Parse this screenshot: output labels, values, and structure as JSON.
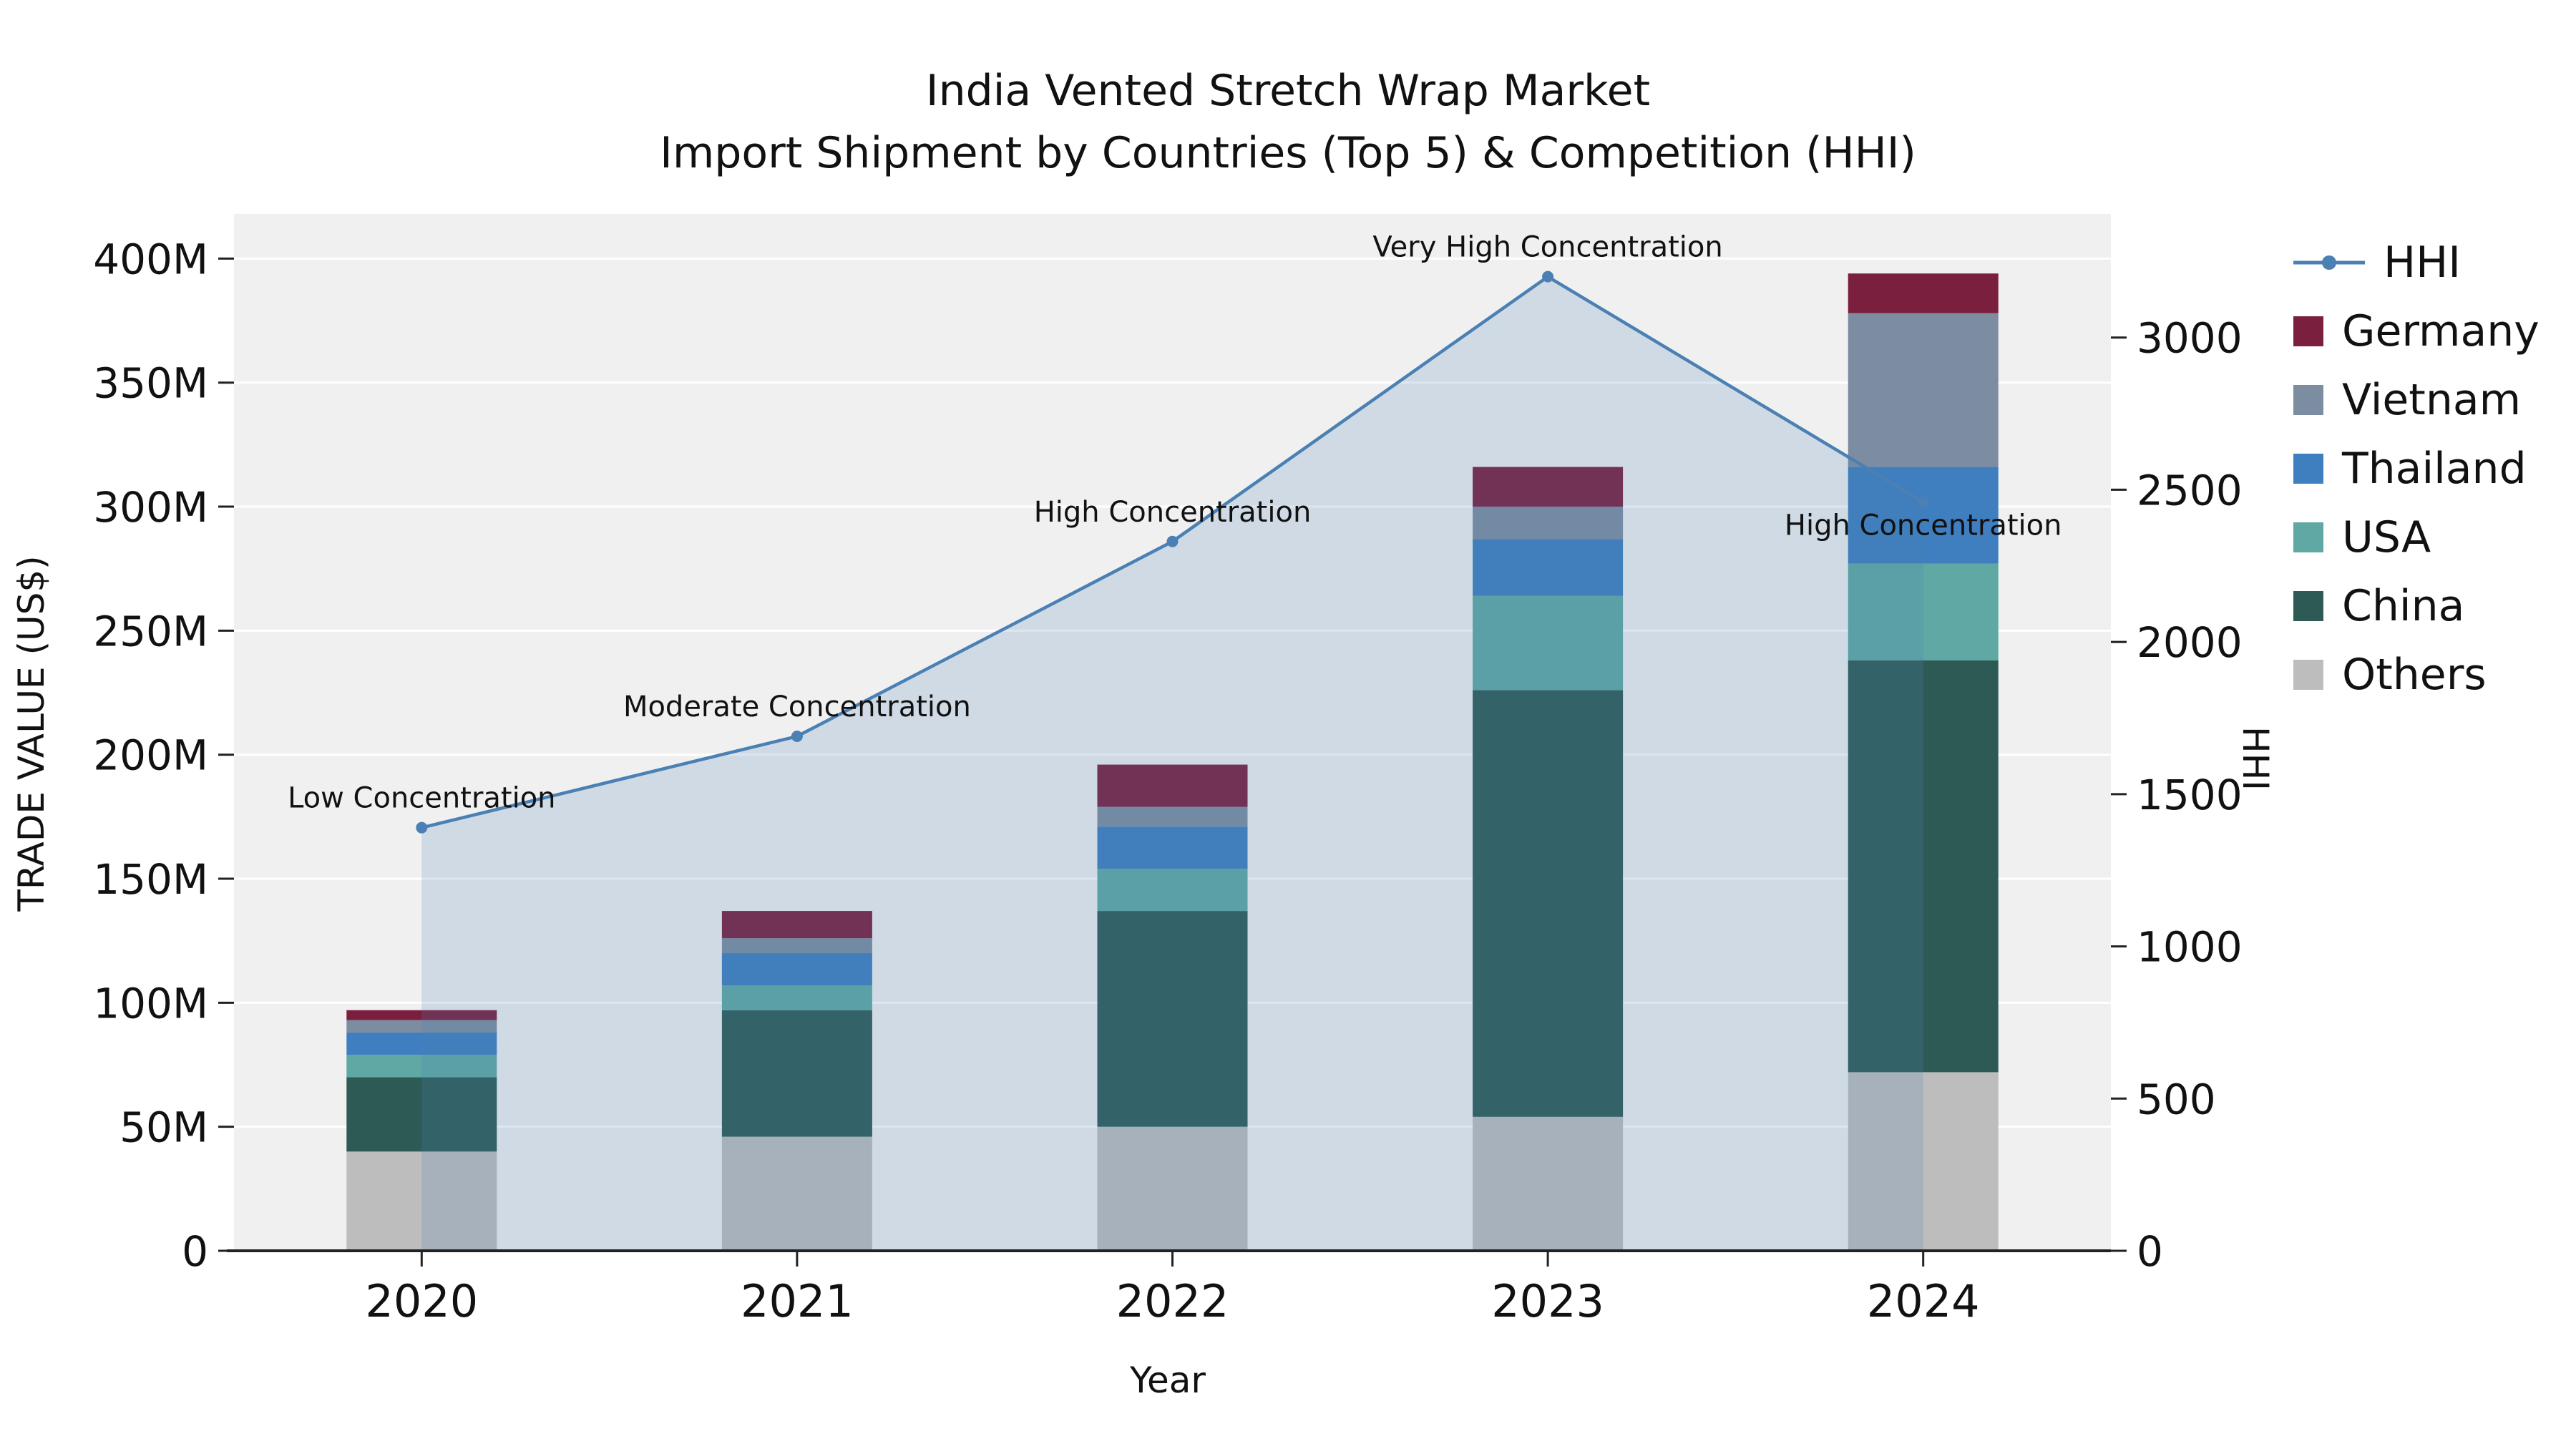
{
  "title": {
    "line1": "India Vented Stretch Wrap Market",
    "line2": "Import Shipment by Countries (Top 5) & Competition (HHI)"
  },
  "axes": {
    "left_label": "TRADE VALUE (US$)",
    "right_label": "HHI",
    "x_label": "Year"
  },
  "chart_data": {
    "type": "bar+line",
    "title": "India Vented Stretch Wrap Market — Import Shipment by Countries (Top 5) & Competition (HHI)",
    "categories": [
      "2020",
      "2021",
      "2022",
      "2023",
      "2024"
    ],
    "bar_value_unit": "Million US$",
    "series": [
      {
        "name": "Others",
        "color": "#bdbdbd",
        "values": [
          40,
          46,
          50,
          54,
          72
        ]
      },
      {
        "name": "China",
        "color": "#2e5a55",
        "values": [
          30,
          51,
          87,
          172,
          166
        ]
      },
      {
        "name": "USA",
        "color": "#5fa8a3",
        "values": [
          9,
          10,
          17,
          38,
          39
        ]
      },
      {
        "name": "Thailand",
        "color": "#3f7fbf",
        "values": [
          9,
          13,
          17,
          23,
          39
        ]
      },
      {
        "name": "Vietnam",
        "color": "#7d8da1",
        "values": [
          5,
          6,
          8,
          13,
          62
        ]
      },
      {
        "name": "Germany",
        "color": "#7b1f3e",
        "values": [
          4,
          11,
          17,
          16,
          16
        ]
      }
    ],
    "line": {
      "name": "HHI",
      "color": "#4a80b3",
      "fill_alpha": 0.2,
      "values": [
        1390,
        1690,
        2330,
        3200,
        2460
      ],
      "annotations": [
        "Low Concentration",
        "Moderate Concentration",
        "High Concentration",
        "Very High Concentration",
        "High Concentration"
      ]
    },
    "left_axis": {
      "label": "TRADE VALUE (US$)",
      "ticks": [
        "0",
        "50M",
        "100M",
        "150M",
        "200M",
        "250M",
        "300M",
        "350M",
        "400M"
      ],
      "tick_values": [
        0,
        50,
        100,
        150,
        200,
        250,
        300,
        350,
        400
      ],
      "max": 418
    },
    "right_axis": {
      "label": "HHI",
      "ticks": [
        "0",
        "500",
        "1000",
        "1500",
        "2000",
        "2500",
        "3000"
      ],
      "tick_values": [
        0,
        500,
        1000,
        1500,
        2000,
        2500,
        3000
      ],
      "max": 3406
    },
    "x_axis": {
      "label": "Year"
    },
    "grid": true,
    "plot_bg": "#f0f0f0",
    "legend_position": "right",
    "legend": [
      {
        "label": "HHI",
        "type": "line",
        "color": "#4a80b3"
      },
      {
        "label": "Germany",
        "type": "square",
        "color": "#7b1f3e"
      },
      {
        "label": "Vietnam",
        "type": "square",
        "color": "#7d8da1"
      },
      {
        "label": "Thailand",
        "type": "square",
        "color": "#3f7fbf"
      },
      {
        "label": "USA",
        "type": "square",
        "color": "#5fa8a3"
      },
      {
        "label": "China",
        "type": "square",
        "color": "#2e5a55"
      },
      {
        "label": "Others",
        "type": "square",
        "color": "#bdbdbd"
      }
    ]
  }
}
